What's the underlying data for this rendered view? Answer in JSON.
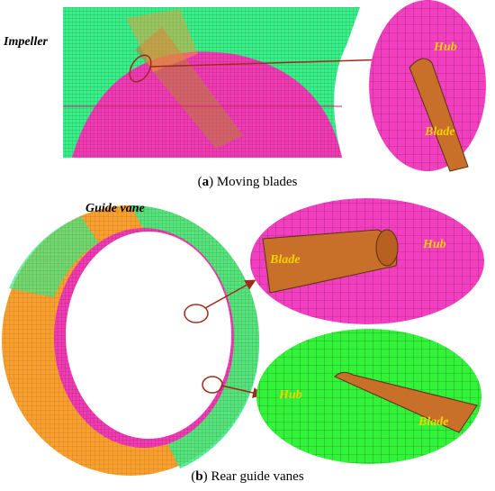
{
  "panel_a": {
    "label": "Impeller",
    "zoom_labels": [
      "Hub",
      "Blade"
    ],
    "caption_parts": [
      "(",
      "a",
      ") Moving blades"
    ]
  },
  "panel_b": {
    "label": "Guide vane",
    "zoom1_labels": [
      "Blade",
      "Hub"
    ],
    "zoom2_labels": [
      "Hub",
      "Blade"
    ],
    "caption_parts": [
      "(",
      "b",
      ") Rear guide vanes"
    ]
  }
}
